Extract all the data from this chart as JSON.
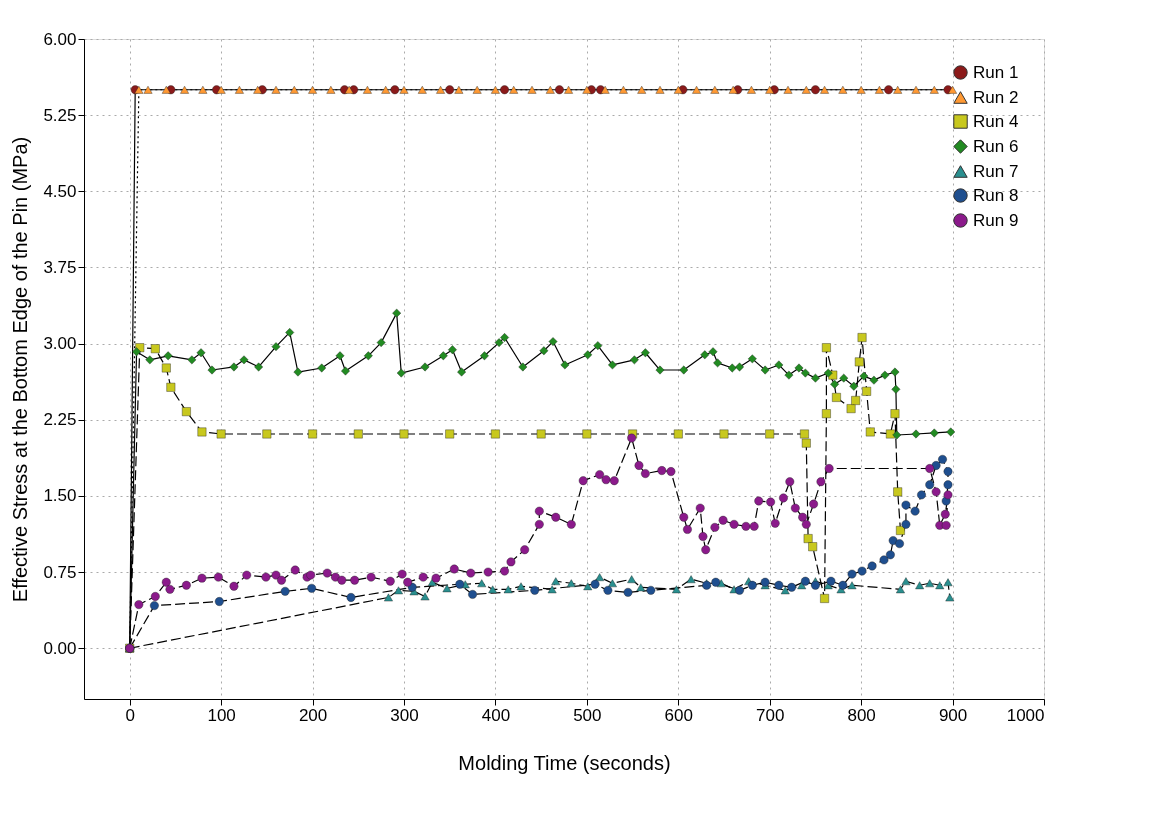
{
  "chart_data": {
    "type": "line",
    "xlabel": "Molding Time (seconds)",
    "ylabel": "Effective Stress at the Bottom Edge of the Pin (MPa)",
    "xlim": [
      -50,
      1000
    ],
    "xticks": [
      0,
      100,
      200,
      300,
      400,
      500,
      600,
      700,
      800,
      900,
      1000
    ],
    "ylim": [
      -0.5,
      6
    ],
    "yticks": [
      {
        "value": 0,
        "label": "0.00"
      },
      {
        "value": 0.75,
        "label": "0.75"
      },
      {
        "value": 1.5,
        "label": "1.50"
      },
      {
        "value": 2.25,
        "label": "2.25"
      },
      {
        "value": 3,
        "label": "3.00"
      },
      {
        "value": 3.75,
        "label": "3.75"
      },
      {
        "value": 4.5,
        "label": "4.50"
      },
      {
        "value": 5.25,
        "label": "5.25"
      },
      {
        "value": 6,
        "label": "6.00"
      }
    ],
    "grid": true,
    "legend": "top right",
    "series": [
      {
        "name": "Run 1",
        "color": "#8b1a1a",
        "marker": "circle",
        "line_style": "solid",
        "x": [
          0,
          6,
          45,
          95,
          145,
          235,
          245,
          290,
          350,
          410,
          470,
          505,
          515,
          605,
          665,
          705,
          750,
          830,
          895
        ],
        "values": [
          0,
          5.5,
          5.5,
          5.5,
          5.5,
          5.5,
          5.5,
          5.5,
          5.5,
          5.5,
          5.5,
          5.5,
          5.5,
          5.5,
          5.5,
          5.5,
          5.5,
          5.5,
          5.5
        ]
      },
      {
        "name": "Run 2",
        "color": "#ff9933",
        "marker": "triangle",
        "line_style": "dotted",
        "x": [
          0,
          10,
          20,
          40,
          60,
          80,
          100,
          120,
          140,
          160,
          180,
          200,
          220,
          240,
          260,
          280,
          300,
          320,
          340,
          360,
          380,
          400,
          420,
          440,
          460,
          480,
          500,
          520,
          540,
          560,
          580,
          600,
          620,
          640,
          660,
          680,
          700,
          720,
          740,
          760,
          780,
          800,
          820,
          840,
          860,
          880,
          900
        ],
        "values": [
          0,
          5.5,
          5.5,
          5.5,
          5.5,
          5.5,
          5.5,
          5.5,
          5.5,
          5.5,
          5.5,
          5.5,
          5.5,
          5.5,
          5.5,
          5.5,
          5.5,
          5.5,
          5.5,
          5.5,
          5.5,
          5.5,
          5.5,
          5.5,
          5.5,
          5.5,
          5.5,
          5.5,
          5.5,
          5.5,
          5.5,
          5.5,
          5.5,
          5.5,
          5.5,
          5.5,
          5.5,
          5.5,
          5.5,
          5.5,
          5.5,
          5.5,
          5.5,
          5.5,
          5.5,
          5.5,
          5.5
        ]
      },
      {
        "name": "Run 4",
        "color": "#c8c81e",
        "marker": "square",
        "line_style": "dashed",
        "x": [
          0,
          11,
          28,
          40,
          45,
          62,
          79,
          100,
          150,
          200,
          250,
          300,
          350,
          400,
          450,
          500,
          550,
          600,
          650,
          700,
          738,
          740,
          742,
          747,
          760,
          762,
          762,
          769,
          773,
          789,
          794,
          798,
          801,
          806,
          810,
          832,
          837,
          840,
          843
        ],
        "values": [
          0,
          2.96,
          2.95,
          2.76,
          2.57,
          2.33,
          2.13,
          2.11,
          2.11,
          2.11,
          2.11,
          2.11,
          2.11,
          2.11,
          2.11,
          2.11,
          2.11,
          2.11,
          2.11,
          2.11,
          2.11,
          2.02,
          1.08,
          1.0,
          0.49,
          2.31,
          2.96,
          2.69,
          2.47,
          2.36,
          2.44,
          2.82,
          3.06,
          2.53,
          2.13,
          2.11,
          2.31,
          1.54,
          1.16
        ]
      },
      {
        "name": "Run 6",
        "color": "#228b22",
        "marker": "diamond",
        "line_style": "solid",
        "x": [
          0,
          7.5,
          22,
          42,
          68,
          78,
          90,
          114,
          125,
          141,
          160,
          175,
          184,
          210,
          230,
          236,
          261,
          275,
          292,
          297,
          323,
          343,
          353,
          363,
          388,
          404,
          410,
          430,
          453,
          463,
          476,
          501,
          512,
          528,
          552,
          564,
          580,
          606,
          629,
          638,
          643,
          659,
          667,
          681,
          695,
          710,
          721,
          732,
          739,
          750,
          764,
          771,
          781,
          792,
          803,
          814,
          826,
          837,
          838,
          839,
          860,
          880,
          898
        ],
        "values": [
          0,
          2.92,
          2.84,
          2.88,
          2.84,
          2.91,
          2.74,
          2.77,
          2.84,
          2.77,
          2.97,
          3.11,
          2.72,
          2.76,
          2.88,
          2.73,
          2.88,
          3.01,
          3.3,
          2.71,
          2.77,
          2.88,
          2.94,
          2.72,
          2.88,
          3.01,
          3.06,
          2.77,
          2.93,
          3.02,
          2.79,
          2.89,
          2.98,
          2.79,
          2.84,
          2.91,
          2.74,
          2.74,
          2.89,
          2.92,
          2.81,
          2.76,
          2.77,
          2.85,
          2.74,
          2.79,
          2.69,
          2.76,
          2.71,
          2.66,
          2.71,
          2.6,
          2.66,
          2.58,
          2.68,
          2.64,
          2.69,
          2.72,
          2.55,
          2.1,
          2.11,
          2.12,
          2.13
        ]
      },
      {
        "name": "Run 7",
        "color": "#2a8f8f",
        "marker": "triangle",
        "line_style": "dashed",
        "x": [
          0,
          283,
          294,
          311,
          323,
          331,
          347,
          367,
          385,
          397,
          414,
          428,
          462,
          466,
          483,
          501,
          514,
          528,
          549,
          559,
          598,
          614,
          631,
          647,
          661,
          677,
          695,
          717,
          735,
          750,
          764,
          778,
          790,
          843,
          849,
          864,
          875,
          886,
          895,
          897
        ],
        "values": [
          0,
          0.5,
          0.57,
          0.56,
          0.51,
          0.65,
          0.59,
          0.63,
          0.64,
          0.58,
          0.58,
          0.61,
          0.58,
          0.66,
          0.64,
          0.61,
          0.7,
          0.64,
          0.68,
          0.6,
          0.58,
          0.68,
          0.64,
          0.64,
          0.58,
          0.66,
          0.62,
          0.57,
          0.62,
          0.66,
          0.62,
          0.58,
          0.62,
          0.58,
          0.66,
          0.62,
          0.64,
          0.62,
          0.65,
          0.5
        ]
      },
      {
        "name": "Run 8",
        "color": "#1f4f8f",
        "marker": "circle",
        "line_style": "dashed",
        "x": [
          0,
          27,
          98,
          170,
          199,
          242,
          309,
          361,
          375,
          443,
          509,
          523,
          545,
          570,
          631,
          641,
          667,
          681,
          695,
          710,
          724,
          739,
          750,
          767,
          780,
          790,
          801,
          812,
          825,
          832,
          835,
          842,
          849,
          849,
          859,
          866,
          875,
          882,
          889,
          895,
          895,
          893
        ],
        "values": [
          0,
          0.42,
          0.46,
          0.56,
          0.59,
          0.5,
          0.6,
          0.63,
          0.53,
          0.57,
          0.63,
          0.57,
          0.55,
          0.57,
          0.62,
          0.65,
          0.57,
          0.62,
          0.65,
          0.62,
          0.6,
          0.66,
          0.62,
          0.66,
          0.62,
          0.73,
          0.76,
          0.81,
          0.87,
          0.92,
          1.06,
          1.03,
          1.22,
          1.41,
          1.35,
          1.51,
          1.61,
          1.8,
          1.86,
          1.74,
          1.61,
          1.45
        ]
      },
      {
        "name": "Run 9",
        "color": "#8b1a8b",
        "marker": "circle",
        "line_style": "dashed",
        "x": [
          0,
          10,
          28,
          40,
          44,
          62,
          79,
          97,
          114,
          128,
          149,
          160,
          166,
          181,
          194,
          198,
          216,
          225,
          232,
          246,
          264,
          285,
          298,
          304,
          321,
          335,
          355,
          373,
          392,
          410,
          417,
          432,
          448,
          448,
          466,
          483,
          496,
          514,
          521,
          530,
          549,
          557,
          564,
          582,
          592,
          606,
          610,
          624,
          627,
          630,
          640,
          649,
          661,
          674,
          683,
          688,
          701,
          706,
          715,
          722,
          728,
          736,
          740,
          748,
          756,
          765,
          875,
          882,
          886,
          892,
          895,
          893
        ],
        "values": [
          0,
          0.43,
          0.51,
          0.65,
          0.58,
          0.62,
          0.69,
          0.7,
          0.61,
          0.72,
          0.7,
          0.72,
          0.67,
          0.77,
          0.7,
          0.72,
          0.74,
          0.7,
          0.67,
          0.67,
          0.7,
          0.66,
          0.73,
          0.65,
          0.7,
          0.69,
          0.78,
          0.74,
          0.75,
          0.76,
          0.85,
          0.97,
          1.22,
          1.35,
          1.29,
          1.22,
          1.65,
          1.71,
          1.66,
          1.65,
          2.07,
          1.8,
          1.72,
          1.75,
          1.74,
          1.29,
          1.17,
          1.38,
          1.1,
          0.97,
          1.19,
          1.26,
          1.22,
          1.2,
          1.2,
          1.45,
          1.44,
          1.23,
          1.48,
          1.64,
          1.38,
          1.29,
          1.22,
          1.42,
          1.64,
          1.77,
          1.77,
          1.54,
          1.21,
          1.32,
          1.51,
          1.21
        ]
      }
    ]
  }
}
